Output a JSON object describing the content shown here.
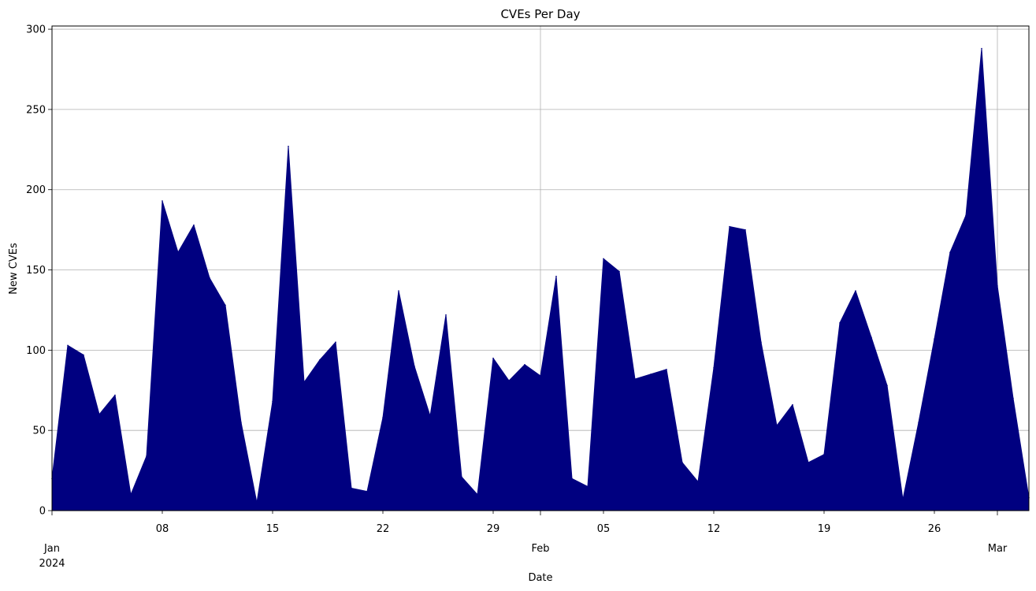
{
  "chart_data": {
    "type": "area",
    "title": "CVEs Per Day",
    "xlabel": "Date",
    "ylabel": "New CVEs",
    "color": "#000080",
    "grid": true,
    "xlim": [
      "2024-01-01",
      "2024-03-03"
    ],
    "ylim": [
      0,
      302
    ],
    "y_ticks": [
      0,
      50,
      100,
      150,
      200,
      250,
      300
    ],
    "x_ticks": [
      {
        "date": "2024-01-01",
        "label": "Jan",
        "sublabel": "2024",
        "major": true
      },
      {
        "date": "2024-01-08",
        "label": "08",
        "major": false
      },
      {
        "date": "2024-01-15",
        "label": "15",
        "major": false
      },
      {
        "date": "2024-01-22",
        "label": "22",
        "major": false
      },
      {
        "date": "2024-01-29",
        "label": "29",
        "major": false
      },
      {
        "date": "2024-02-01",
        "label": "Feb",
        "major": true
      },
      {
        "date": "2024-02-05",
        "label": "05",
        "major": false
      },
      {
        "date": "2024-02-12",
        "label": "12",
        "major": false
      },
      {
        "date": "2024-02-19",
        "label": "19",
        "major": false
      },
      {
        "date": "2024-02-26",
        "label": "26",
        "major": false
      },
      {
        "date": "2024-03-01",
        "label": "Mar",
        "major": true
      }
    ],
    "series": [
      {
        "dates": [
          "2024-01-01",
          "2024-01-02",
          "2024-01-03",
          "2024-01-04",
          "2024-01-05",
          "2024-01-06",
          "2024-01-07",
          "2024-01-08",
          "2024-01-09",
          "2024-01-10",
          "2024-01-11",
          "2024-01-12",
          "2024-01-13",
          "2024-01-14",
          "2024-01-15",
          "2024-01-16",
          "2024-01-17",
          "2024-01-18",
          "2024-01-19",
          "2024-01-20",
          "2024-01-21",
          "2024-01-22",
          "2024-01-23",
          "2024-01-24",
          "2024-01-25",
          "2024-01-26",
          "2024-01-27",
          "2024-01-28",
          "2024-01-29",
          "2024-01-30",
          "2024-01-31",
          "2024-02-01",
          "2024-02-02",
          "2024-02-03",
          "2024-02-04",
          "2024-02-05",
          "2024-02-06",
          "2024-02-07",
          "2024-02-08",
          "2024-02-09",
          "2024-02-10",
          "2024-02-11",
          "2024-02-12",
          "2024-02-13",
          "2024-02-14",
          "2024-02-15",
          "2024-02-16",
          "2024-02-17",
          "2024-02-18",
          "2024-02-19",
          "2024-02-20",
          "2024-02-21",
          "2024-02-22",
          "2024-02-23",
          "2024-02-24",
          "2024-02-25",
          "2024-02-26",
          "2024-02-27",
          "2024-02-28",
          "2024-02-29",
          "2024-03-01",
          "2024-03-02",
          "2024-03-03"
        ],
        "values": [
          20,
          103,
          97,
          60,
          72,
          10,
          34,
          193,
          161,
          178,
          145,
          128,
          55,
          5,
          68,
          227,
          80,
          94,
          105,
          14,
          12,
          58,
          137,
          90,
          59,
          122,
          21,
          10,
          95,
          81,
          91,
          84,
          146,
          20,
          15,
          157,
          149,
          82,
          85,
          88,
          30,
          18,
          89,
          177,
          175,
          105,
          53,
          66,
          30,
          35,
          117,
          137,
          108,
          78,
          7,
          55,
          107,
          161,
          184,
          288,
          140,
          70,
          8
        ]
      }
    ]
  }
}
